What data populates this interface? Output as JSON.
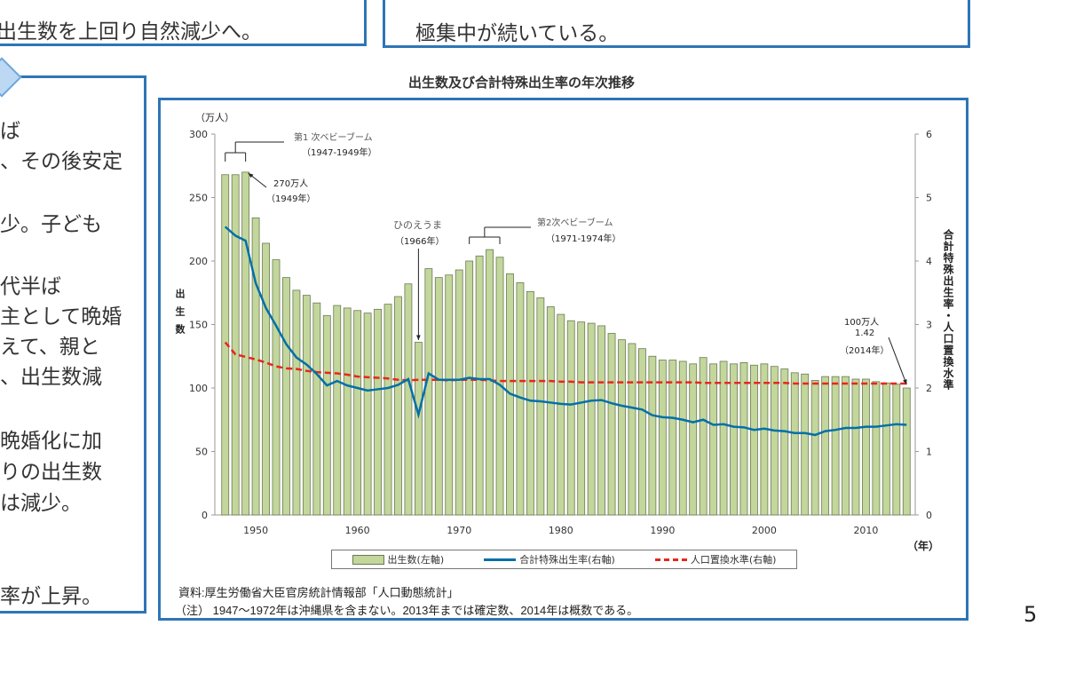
{
  "slide": {
    "top_left_box_text": "出生数を上回り自然減少へ。",
    "top_middle_box_text": "極集中が続いている。",
    "left_box_lines": [
      "ば",
      "、その後安定",
      "少。子ども",
      "代半ば",
      "主として晩婚",
      "えて、親と",
      "、出生数減",
      "晩婚化に加",
      "りの出生数",
      "は減少。",
      "率が上昇。"
    ],
    "page_number": "5"
  },
  "colors": {
    "frame": "#2e75b6",
    "bar": "#c3d69b",
    "bar_edge": "#6b7a55",
    "tfr": "#0070a8",
    "replacement": "#e8261c"
  },
  "chart_data": {
    "type": "bar+line",
    "title": "出生数及び合計特殊出生率の年次推移",
    "left_unit": "（万人）",
    "left_label": "出生数",
    "right_label": "合計特殊出生率・人口置換水準",
    "x_unit": "（年）",
    "x_ticks": [
      "1950",
      "1960",
      "1970",
      "1980",
      "1990",
      "2000",
      "2010"
    ],
    "left_ticks": [
      "0",
      "50",
      "100",
      "150",
      "200",
      "250",
      "300"
    ],
    "right_ticks": [
      "0",
      "1",
      "2",
      "3",
      "4",
      "5",
      "6"
    ],
    "ylim_left": [
      0,
      300
    ],
    "ylim_right": [
      0,
      6
    ],
    "years": [
      1947,
      1948,
      1949,
      1950,
      1951,
      1952,
      1953,
      1954,
      1955,
      1956,
      1957,
      1958,
      1959,
      1960,
      1961,
      1962,
      1963,
      1964,
      1965,
      1966,
      1967,
      1968,
      1969,
      1970,
      1971,
      1972,
      1973,
      1974,
      1975,
      1976,
      1977,
      1978,
      1979,
      1980,
      1981,
      1982,
      1983,
      1984,
      1985,
      1986,
      1987,
      1988,
      1989,
      1990,
      1991,
      1992,
      1993,
      1994,
      1995,
      1996,
      1997,
      1998,
      1999,
      2000,
      2001,
      2002,
      2003,
      2004,
      2005,
      2006,
      2007,
      2008,
      2009,
      2010,
      2011,
      2012,
      2013,
      2014
    ],
    "series": [
      {
        "name": "出生数(左軸)",
        "axis": "left",
        "kind": "bar",
        "values": [
          268,
          268,
          270,
          234,
          214,
          201,
          187,
          177,
          173,
          167,
          157,
          165,
          163,
          161,
          159,
          162,
          166,
          172,
          182,
          136,
          194,
          187,
          189,
          193,
          200,
          204,
          209,
          203,
          190,
          183,
          176,
          171,
          164,
          158,
          153,
          152,
          151,
          149,
          143,
          138,
          135,
          131,
          125,
          122,
          122,
          121,
          119,
          124,
          119,
          121,
          119,
          120,
          118,
          119,
          117,
          115,
          112,
          111,
          106,
          109,
          109,
          109,
          107,
          107,
          105,
          104,
          103,
          100
        ]
      },
      {
        "name": "合計特殊出生率(右軸)",
        "axis": "right",
        "kind": "line",
        "values": [
          4.54,
          4.4,
          4.32,
          3.65,
          3.26,
          2.98,
          2.69,
          2.48,
          2.37,
          2.22,
          2.04,
          2.11,
          2.04,
          2.0,
          1.96,
          1.98,
          2.0,
          2.05,
          2.14,
          1.58,
          2.23,
          2.13,
          2.13,
          2.13,
          2.16,
          2.14,
          2.14,
          2.05,
          1.91,
          1.85,
          1.8,
          1.79,
          1.77,
          1.75,
          1.74,
          1.77,
          1.8,
          1.81,
          1.76,
          1.72,
          1.69,
          1.66,
          1.57,
          1.54,
          1.53,
          1.5,
          1.46,
          1.5,
          1.42,
          1.43,
          1.39,
          1.38,
          1.34,
          1.36,
          1.33,
          1.32,
          1.29,
          1.29,
          1.26,
          1.32,
          1.34,
          1.37,
          1.37,
          1.39,
          1.39,
          1.41,
          1.43,
          1.42
        ]
      },
      {
        "name": "人口置換水準(右軸)",
        "axis": "right",
        "kind": "dashed-line",
        "values": [
          2.72,
          2.53,
          2.49,
          2.45,
          2.4,
          2.34,
          2.31,
          2.3,
          2.27,
          2.25,
          2.24,
          2.23,
          2.21,
          2.18,
          2.17,
          2.16,
          2.15,
          2.13,
          2.12,
          2.13,
          2.13,
          2.13,
          2.12,
          2.13,
          2.13,
          2.13,
          2.12,
          2.11,
          2.11,
          2.11,
          2.11,
          2.11,
          2.11,
          2.1,
          2.1,
          2.09,
          2.09,
          2.09,
          2.09,
          2.09,
          2.09,
          2.09,
          2.09,
          2.09,
          2.09,
          2.09,
          2.09,
          2.08,
          2.08,
          2.08,
          2.08,
          2.08,
          2.08,
          2.08,
          2.08,
          2.08,
          2.07,
          2.07,
          2.07,
          2.07,
          2.07,
          2.07,
          2.07,
          2.07,
          2.07,
          2.07,
          2.07,
          2.07
        ]
      }
    ],
    "annotations": {
      "boom1": [
        "第1 次ベビーブーム",
        "（1947-1949年）"
      ],
      "peak": [
        "270万人",
        "（1949年）"
      ],
      "hinoeuma": [
        "ひのえうま",
        "（1966年）"
      ],
      "boom2": [
        "第2次ベビーブーム",
        "（1971-1974年）"
      ],
      "latest": [
        "100万人",
        "1.42",
        "（2014年）"
      ]
    },
    "legend_position": "bottom",
    "source": "資料:厚生労働省大臣官房統計情報部「人口動態統計」",
    "note": "（注） 1947〜1972年は沖縄県を含まない。2013年までは確定数、2014年は概数である。"
  }
}
